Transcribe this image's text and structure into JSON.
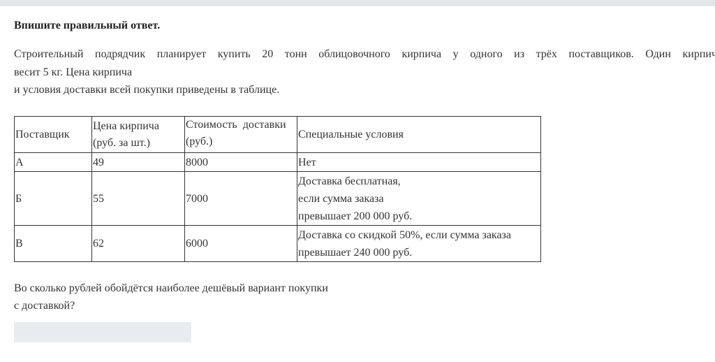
{
  "instruction": "Впишите правильный ответ.",
  "problem": {
    "line1": "Строительный подрядчик планирует купить 20 тонн облицовочного кирпича у одного из трёх поставщиков. Один кирпич",
    "line2": "весит 5 кг. Цена кирпича",
    "line3": "и условия доставки всей покупки приведены в таблице."
  },
  "table": {
    "headers": [
      [
        "Поставщик"
      ],
      [
        "Цена кирпича",
        "(руб. за шт.)"
      ],
      [
        "Стоимость  доставки",
        "(руб.)"
      ],
      [
        "Специальные условия"
      ]
    ],
    "rows": [
      {
        "supplier": "А",
        "price": "49",
        "delivery": "8000",
        "conditions": [
          "Нет"
        ]
      },
      {
        "supplier": "Б",
        "price": "55",
        "delivery": "7000",
        "conditions": [
          "Доставка бесплатная,",
          "если сумма заказа",
          "превышает 200 000 руб."
        ]
      },
      {
        "supplier": "В",
        "price": "62",
        "delivery": "6000",
        "conditions": [
          "Доставка со скидкой 50%, если сумма заказа",
          "превышает 240 000 руб."
        ]
      }
    ]
  },
  "question": {
    "line1": "Во сколько рублей обойдётся наиболее дешёвый вариант покупки",
    "line2": "с доставкой?"
  },
  "answer": {
    "value": ""
  }
}
